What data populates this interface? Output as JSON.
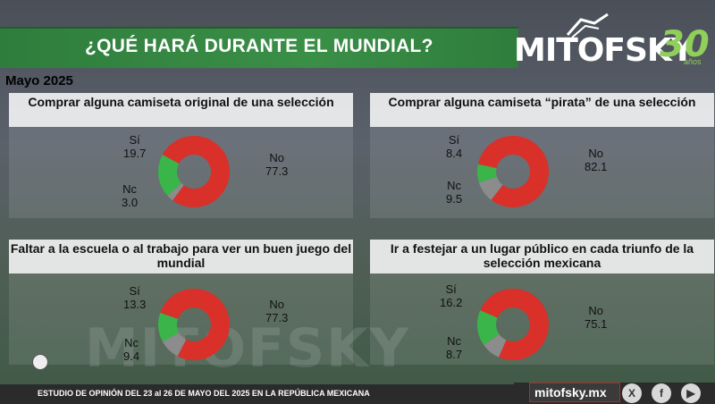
{
  "header": {
    "title": "¿QUÉ HARÁ DURANTE EL MUNDIAL?"
  },
  "logo": {
    "word": "MITOFSKY",
    "number": "30",
    "sub": "años"
  },
  "date": "Mayo 2025",
  "colors": {
    "si": "#3ab54a",
    "no": "#d9302a",
    "nc": "#8c8c8c"
  },
  "chart_data": [
    {
      "type": "pie",
      "title": "Comprar alguna camiseta original de una selección",
      "categories": [
        "Sí",
        "No",
        "Nc"
      ],
      "values": [
        19.7,
        77.3,
        3.0
      ],
      "labels": {
        "si": "19.7",
        "no": "77.3",
        "nc": "3.0"
      }
    },
    {
      "type": "pie",
      "title": "Comprar alguna camiseta “pirata” de una selección",
      "categories": [
        "Sí",
        "No",
        "Nc"
      ],
      "values": [
        8.4,
        82.1,
        9.5
      ],
      "labels": {
        "si": "8.4",
        "no": "82.1",
        "nc": "9.5"
      }
    },
    {
      "type": "pie",
      "title": "Faltar a la escuela o al trabajo para ver un buen juego del mundial",
      "categories": [
        "Sí",
        "No",
        "Nc"
      ],
      "values": [
        13.3,
        77.3,
        9.4
      ],
      "labels": {
        "si": "13.3",
        "no": "77.3",
        "nc": "9.4"
      }
    },
    {
      "type": "pie",
      "title": "Ir a festejar a un lugar público en cada triunfo de la selección mexicana",
      "categories": [
        "Sí",
        "No",
        "Nc"
      ],
      "values": [
        16.2,
        75.1,
        8.7
      ],
      "labels": {
        "si": "16.2",
        "no": "75.1",
        "nc": "8.7"
      }
    }
  ],
  "labels": {
    "si": "Sí",
    "no": "No",
    "nc": "Nc"
  },
  "watermark": "MITOFSKY",
  "footer": {
    "study": "ESTUDIO DE OPINIÓN DEL 23 al 26 DE MAYO DEL 2025 EN LA REPÚBLICA MEXICANA",
    "url": "mitofsky.mx"
  },
  "social": [
    "x-icon",
    "facebook-icon",
    "youtube-icon"
  ]
}
